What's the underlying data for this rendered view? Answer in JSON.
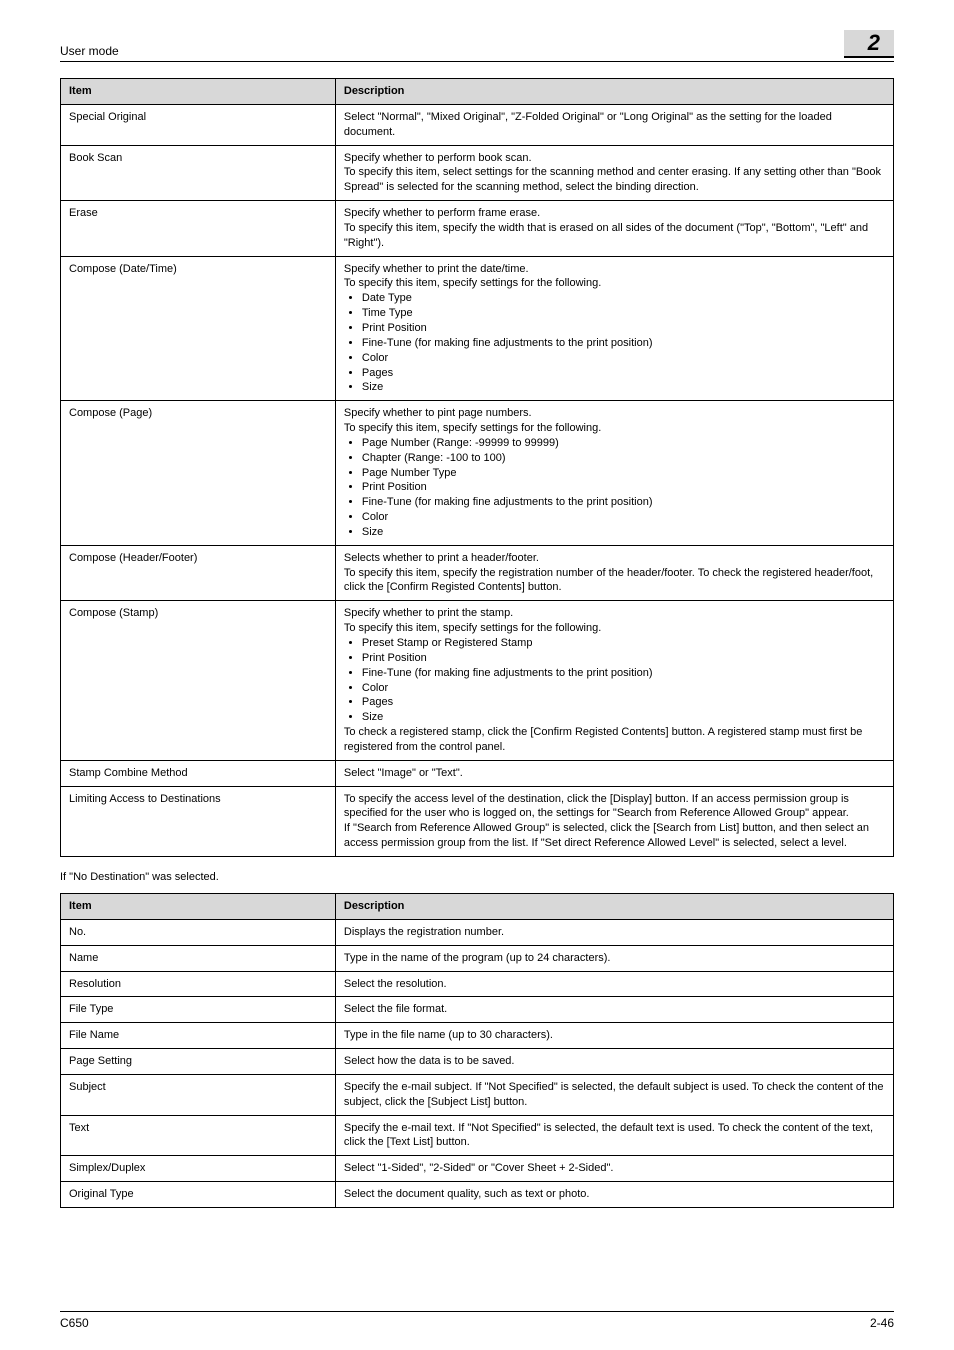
{
  "header": {
    "section": "User mode",
    "chapter": "2"
  },
  "table1": {
    "headers": [
      "Item",
      "Description"
    ],
    "rows": [
      {
        "item": "Special Original",
        "desc_lines": [
          "Select \"Normal\", \"Mixed Original\", \"Z-Folded Original\" or \"Long Original\" as the setting for the loaded document."
        ]
      },
      {
        "item": "Book Scan",
        "desc_lines": [
          "Specify whether to perform book scan.",
          "To specify this item, select settings for the scanning method and center erasing. If any setting other than \"Book Spread\" is selected for the scanning method, select the binding direction."
        ]
      },
      {
        "item": "Erase",
        "desc_lines": [
          "Specify whether to perform frame erase.",
          "To specify this item, specify the width that is erased on all sides of the document (\"Top\", \"Bottom\", \"Left\" and \"Right\")."
        ]
      },
      {
        "item": "Compose (Date/Time)",
        "desc_lines": [
          "Specify whether to print the date/time.",
          "To specify this item, specify settings for the following."
        ],
        "bullets": [
          "Date Type",
          "Time Type",
          "Print Position",
          "Fine-Tune (for making fine adjustments to the print position)",
          "Color",
          "Pages",
          "Size"
        ]
      },
      {
        "item": "Compose (Page)",
        "desc_lines": [
          "Specify whether to pint page numbers.",
          "To specify this item, specify settings for the following."
        ],
        "bullets": [
          "Page Number (Range: -99999 to 99999)",
          "Chapter (Range: -100 to 100)",
          "Page Number Type",
          "Print Position",
          "Fine-Tune (for making fine adjustments to the print position)",
          "Color",
          "Size"
        ]
      },
      {
        "item": "Compose (Header/Footer)",
        "desc_lines": [
          "Selects whether to print a header/footer.",
          "To specify this item, specify the registration number of the header/footer. To check the registered header/foot, click the [Confirm Registed Contents] button."
        ]
      },
      {
        "item": "Compose (Stamp)",
        "desc_lines": [
          "Specify whether to print the stamp.",
          "To specify this item, specify settings for the following."
        ],
        "bullets": [
          "Preset Stamp or Registered Stamp",
          "Print Position",
          "Fine-Tune (for making fine adjustments to the print position)",
          "Color",
          "Pages",
          "Size"
        ],
        "desc_after": [
          "To check a registered stamp, click the [Confirm Registed Contents] button. A registered stamp must first be registered from the control panel."
        ]
      },
      {
        "item": "Stamp Combine Method",
        "desc_lines": [
          "Select \"Image\" or \"Text\"."
        ]
      },
      {
        "item": "Limiting Access to Destinations",
        "desc_lines": [
          "To specify the access level of the destination, click the [Display] button. If an access permission group is specified for the user who is logged on, the settings for \"Search from Reference Allowed Group\" appear.",
          "If \"Search from Reference Allowed Group\" is selected, click the [Search from List] button, and then select an access permission group from the list. If \"Set direct Reference Allowed Level\" is selected, select a level."
        ]
      }
    ]
  },
  "intro2": "If \"No Destination\" was selected.",
  "table2": {
    "headers": [
      "Item",
      "Description"
    ],
    "rows": [
      {
        "item": "No.",
        "desc": "Displays the registration number."
      },
      {
        "item": "Name",
        "desc": "Type in the name of the program (up to 24 characters)."
      },
      {
        "item": "Resolution",
        "desc": "Select the resolution."
      },
      {
        "item": "File Type",
        "desc": "Select the file format."
      },
      {
        "item": "File Name",
        "desc": "Type in the file name (up to 30 characters)."
      },
      {
        "item": "Page Setting",
        "desc": "Select how the data is to be saved."
      },
      {
        "item": "Subject",
        "desc": "Specify the e-mail subject. If \"Not Specified\" is selected, the default subject is used. To check the content of the subject, click the [Subject List] button."
      },
      {
        "item": "Text",
        "desc": "Specify the e-mail text. If \"Not Specified\" is selected, the default text is used. To check the content of the text, click the [Text List] button."
      },
      {
        "item": "Simplex/Duplex",
        "desc": "Select \"1-Sided\", \"2-Sided\" or \"Cover Sheet + 2-Sided\"."
      },
      {
        "item": "Original Type",
        "desc": "Select the document quality, such as text or photo."
      }
    ]
  },
  "footer": {
    "left": "C650",
    "right": "2-46"
  }
}
